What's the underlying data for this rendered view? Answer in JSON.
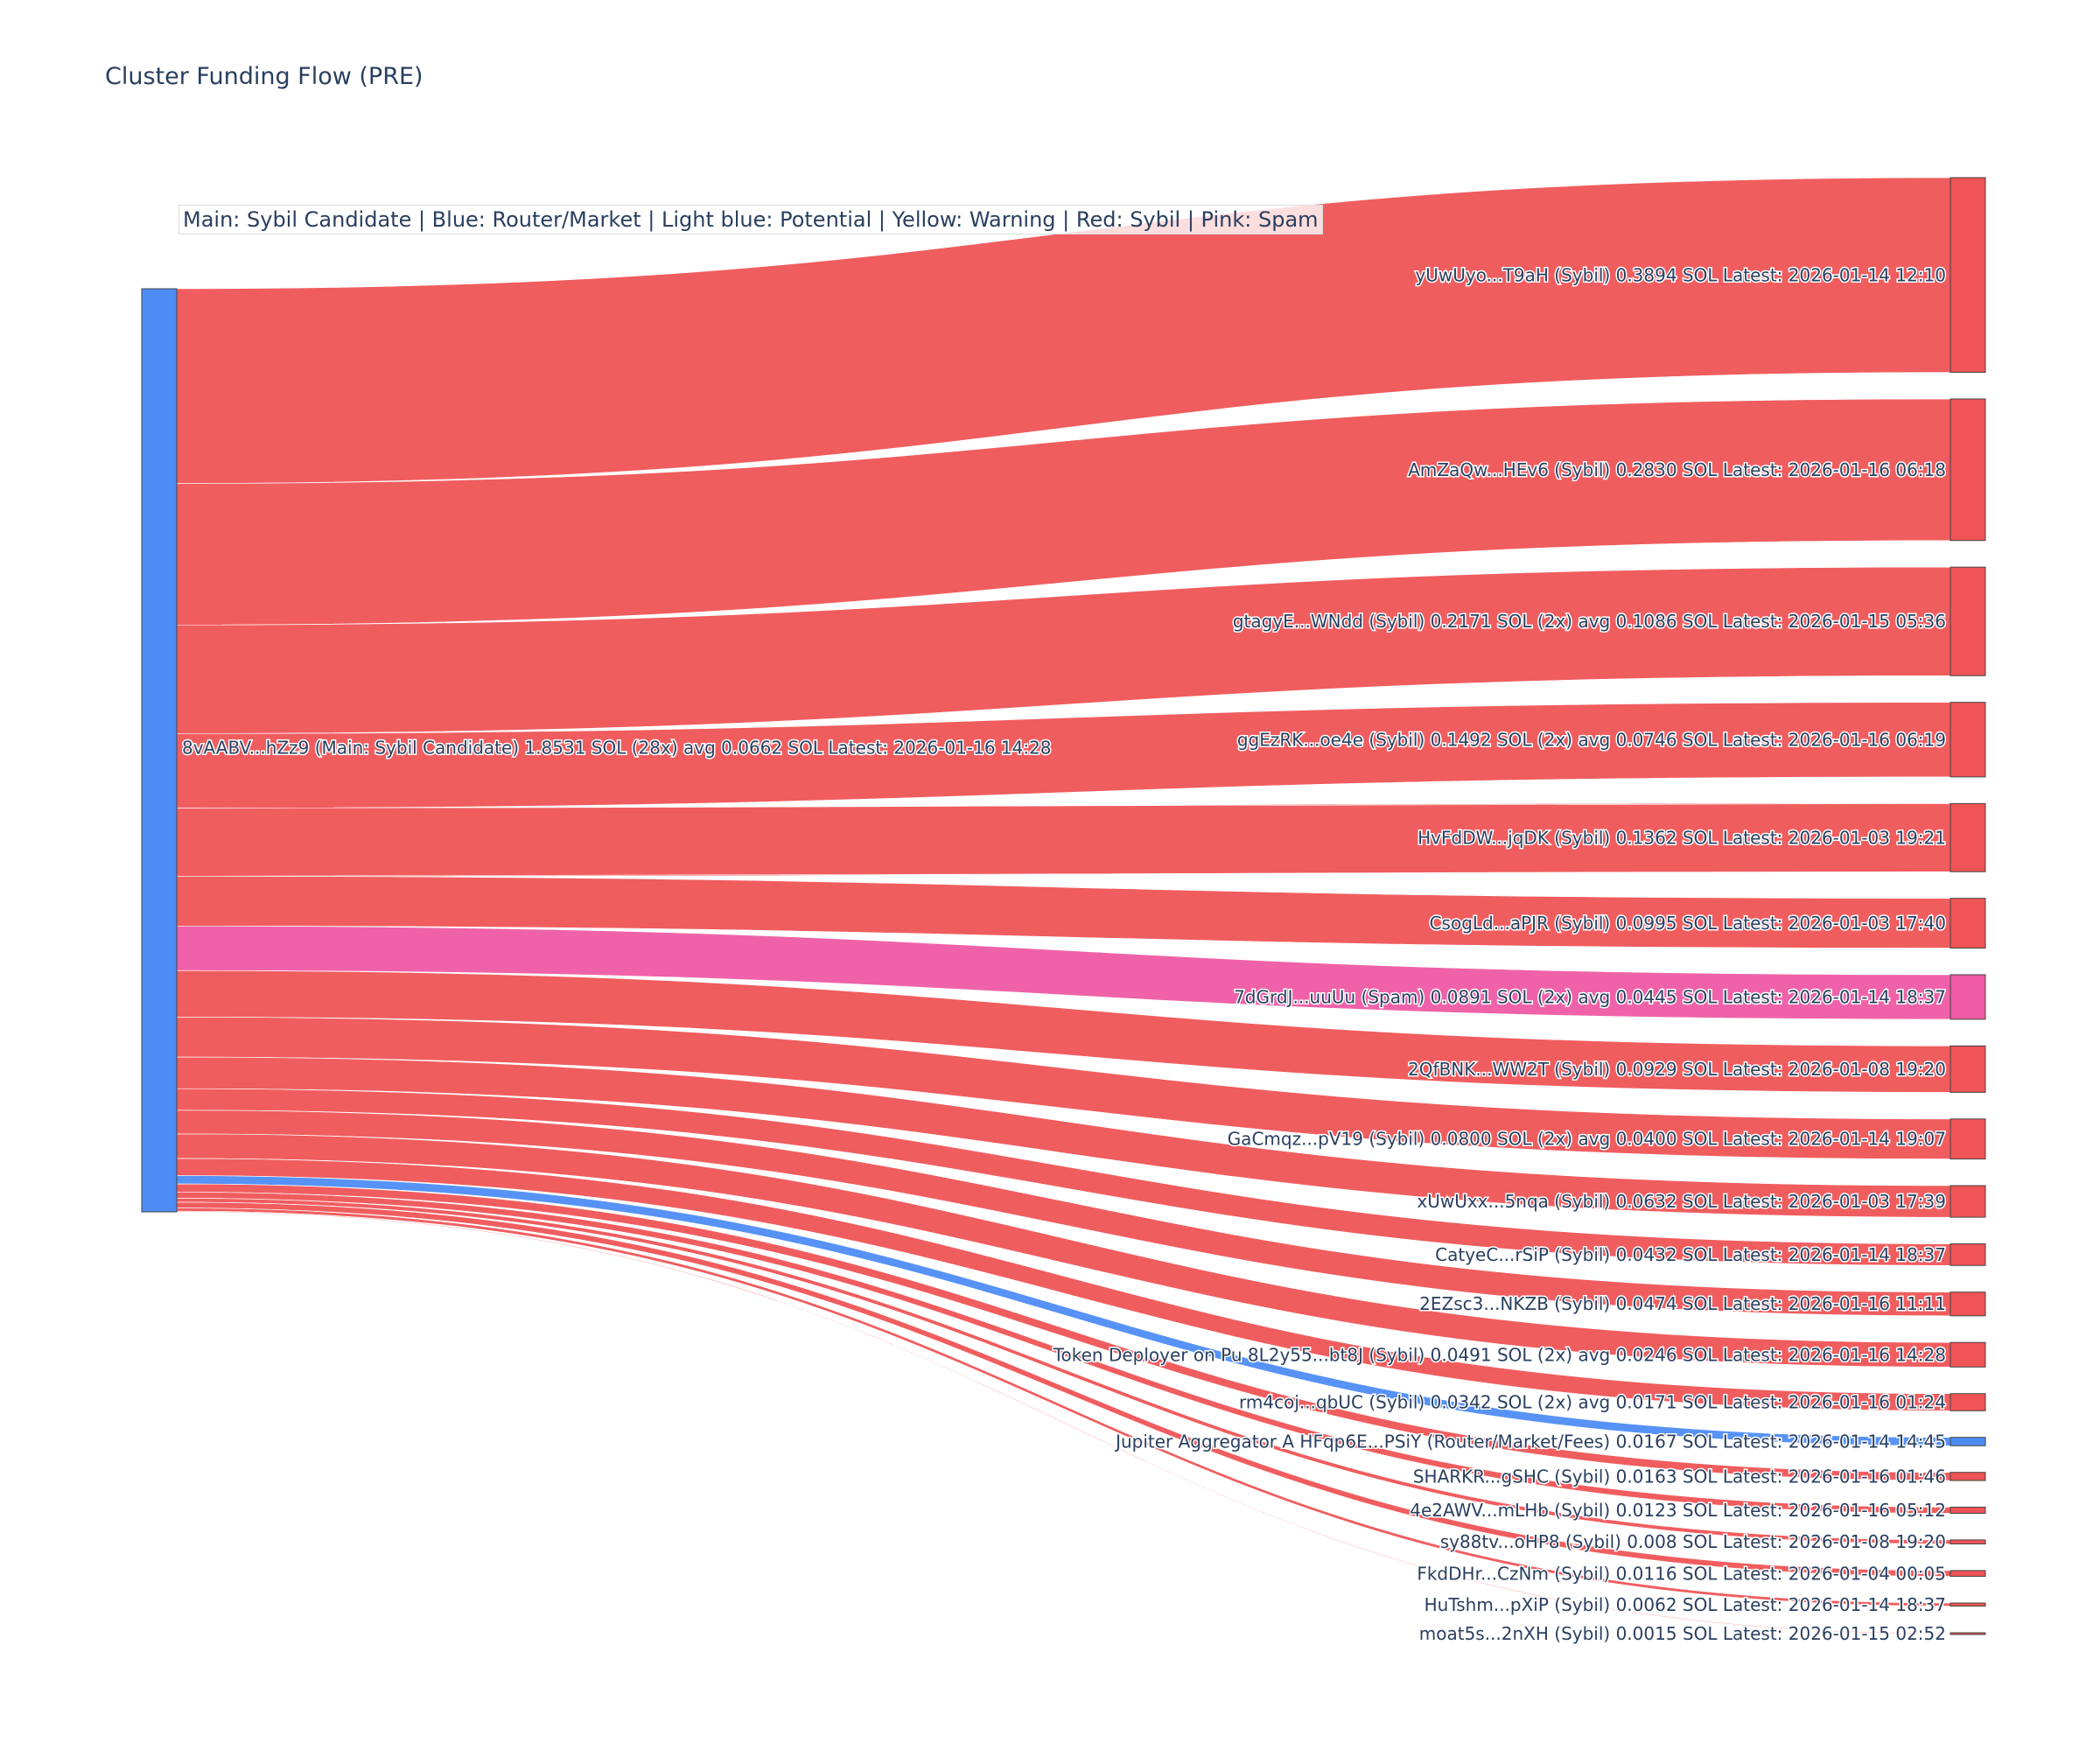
{
  "title": "Cluster Funding Flow (PRE)",
  "legend_note": "Main: Sybil Candidate  |  Blue: Router/Market | Light blue: Potential | Yellow: Warning | Red: Sybil | Pink: Spam",
  "colors": {
    "main": "#4e8cf5",
    "router": "#4e8cf5",
    "sybil": "#ef5456",
    "spam": "#ee5aa4",
    "border": "#444444"
  },
  "chart_data": {
    "type": "sankey",
    "title": "Cluster Funding Flow (PRE)",
    "source": {
      "label": "8vAABV...hZz9 (Main: Sybil Candidate) 1.8531 SOL (28x) avg 0.0662 SOL Latest: 2026-01-16 14:28",
      "category": "main"
    },
    "targets": [
      {
        "label": "yUwUyo...T9aH (Sybil) 0.3894 SOL Latest: 2026-01-14 12:10",
        "value": 0.3894,
        "category": "sybil"
      },
      {
        "label": "AmZaQw...HEv6 (Sybil) 0.2830 SOL Latest: 2026-01-16 06:18",
        "value": 0.283,
        "category": "sybil"
      },
      {
        "label": "gtagyE...WNdd (Sybil) 0.2171 SOL (2x) avg 0.1086 SOL Latest: 2026-01-15 05:36",
        "value": 0.2171,
        "category": "sybil"
      },
      {
        "label": "ggEzRK...oe4e (Sybil) 0.1492 SOL (2x) avg 0.0746 SOL Latest: 2026-01-16 06:19",
        "value": 0.1492,
        "category": "sybil"
      },
      {
        "label": "HvFdDW...jqDK (Sybil) 0.1362 SOL Latest: 2026-01-03 19:21",
        "value": 0.1362,
        "category": "sybil"
      },
      {
        "label": "CsogLd...aPJR (Sybil) 0.0995 SOL Latest: 2026-01-03 17:40",
        "value": 0.0995,
        "category": "sybil"
      },
      {
        "label": "7dGrdJ...uuUu (Spam) 0.0891 SOL (2x) avg 0.0445 SOL Latest: 2026-01-14 18:37",
        "value": 0.0891,
        "category": "spam"
      },
      {
        "label": "2QfBNK...WW2T (Sybil) 0.0929 SOL Latest: 2026-01-08 19:20",
        "value": 0.0929,
        "category": "sybil"
      },
      {
        "label": "GaCmqz...pV19 (Sybil) 0.0800 SOL (2x) avg 0.0400 SOL Latest: 2026-01-14 19:07",
        "value": 0.08,
        "category": "sybil"
      },
      {
        "label": "xUwUxx...5nqa (Sybil) 0.0632 SOL Latest: 2026-01-03 17:39",
        "value": 0.0632,
        "category": "sybil"
      },
      {
        "label": "CatyeC...rSiP (Sybil) 0.0432 SOL Latest: 2026-01-14 18:37",
        "value": 0.0432,
        "category": "sybil"
      },
      {
        "label": "2EZsc3...NKZB (Sybil) 0.0474 SOL Latest: 2026-01-16 11:11",
        "value": 0.0474,
        "category": "sybil"
      },
      {
        "label": "Token Deployer on Pu 8L2y55...bt8J (Sybil) 0.0491 SOL (2x) avg 0.0246 SOL Latest: 2026-01-16 14:28",
        "value": 0.0491,
        "category": "sybil"
      },
      {
        "label": "rm4coj...qbUC (Sybil) 0.0342 SOL (2x) avg 0.0171 SOL Latest: 2026-01-16 01:24",
        "value": 0.0342,
        "category": "sybil"
      },
      {
        "label": "Jupiter Aggregator A HFqp6E...PSiY (Router/Market/Fees) 0.0167 SOL Latest: 2026-01-14 14:45",
        "value": 0.0167,
        "category": "router"
      },
      {
        "label": "SHARKR...gSHC (Sybil) 0.0163 SOL Latest: 2026-01-16 01:46",
        "value": 0.0163,
        "category": "sybil"
      },
      {
        "label": "4e2AWV...mLHb (Sybil) 0.0123 SOL Latest: 2026-01-16 05:12",
        "value": 0.0123,
        "category": "sybil"
      },
      {
        "label": "sy88tv...oHP8 (Sybil) 0.008 SOL Latest: 2026-01-08 19:20",
        "value": 0.008,
        "category": "sybil"
      },
      {
        "label": "FkdDHr...CzNm (Sybil) 0.0116 SOL Latest: 2026-01-04 00:05",
        "value": 0.0116,
        "category": "sybil"
      },
      {
        "label": "HuTshm...pXiP (Sybil) 0.0062 SOL Latest: 2026-01-14 18:37",
        "value": 0.0062,
        "category": "sybil"
      },
      {
        "label": "moat5s...2nXH (Sybil) 0.0015 SOL Latest: 2026-01-15 02:52",
        "value": 0.0015,
        "category": "sybil"
      }
    ]
  }
}
